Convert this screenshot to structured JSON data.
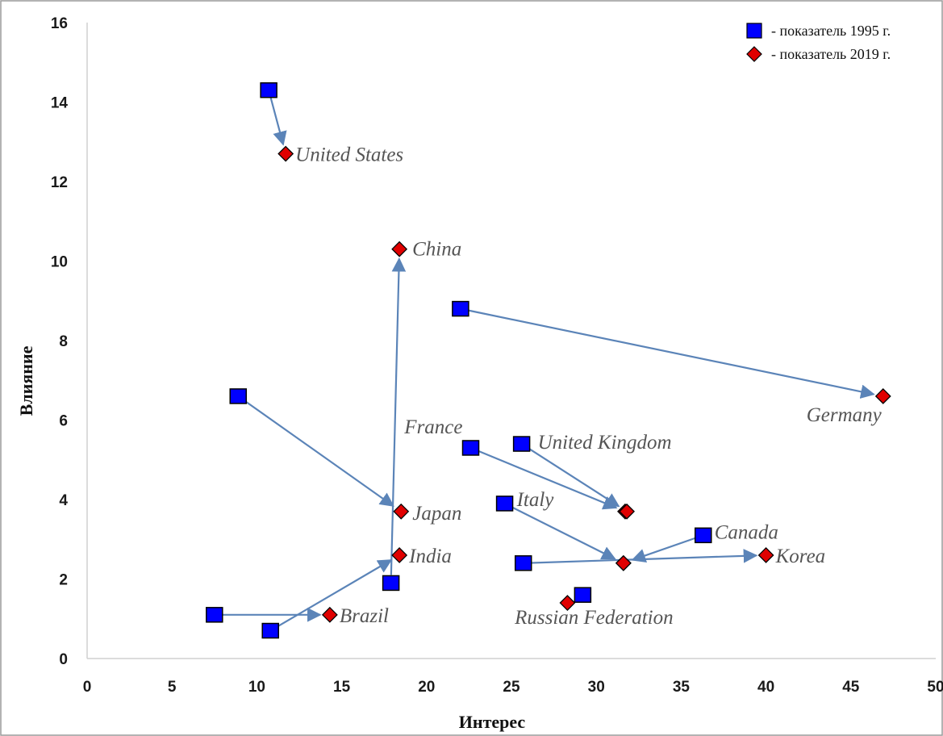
{
  "chart_data": {
    "type": "scatter",
    "xlabel": "Интерес",
    "ylabel": "Влияние",
    "xlim": [
      0,
      50
    ],
    "ylim": [
      0,
      16
    ],
    "x_ticks": [
      0,
      5,
      10,
      15,
      20,
      25,
      30,
      35,
      40,
      45,
      50
    ],
    "y_ticks": [
      0,
      2,
      4,
      6,
      8,
      10,
      12,
      14,
      16
    ],
    "grid": false,
    "legend_position": "top-right",
    "series": [
      {
        "name": "- показатель 1995 г.",
        "marker": "square",
        "color": "#0000ff"
      },
      {
        "name": "- показатель 2019 г.",
        "marker": "diamond",
        "color": "#e00000"
      }
    ],
    "arrow_color": "#5b84b8",
    "points": [
      {
        "label": "United States",
        "x1995": 10.7,
        "y1995": 14.3,
        "x2019": 11.7,
        "y2019": 12.7
      },
      {
        "label": "China",
        "x1995": 17.9,
        "y1995": 1.9,
        "x2019": 18.4,
        "y2019": 10.3
      },
      {
        "label": "Germany",
        "x1995": 22.0,
        "y1995": 8.8,
        "x2019": 46.9,
        "y2019": 6.6
      },
      {
        "label": "France",
        "x1995": 22.6,
        "y1995": 5.3,
        "x2019": 31.7,
        "y2019": 3.7
      },
      {
        "label": "United Kingdom",
        "x1995": 25.6,
        "y1995": 5.4,
        "x2019": 31.8,
        "y2019": 3.7
      },
      {
        "label": "Japan",
        "x1995": 8.9,
        "y1995": 6.6,
        "x2019": 18.5,
        "y2019": 3.7
      },
      {
        "label": "Italy",
        "x1995": 24.6,
        "y1995": 3.9,
        "x2019": 31.6,
        "y2019": 2.4
      },
      {
        "label": "Canada",
        "x1995": 36.3,
        "y1995": 3.1,
        "x2019": 31.6,
        "y2019": 2.4
      },
      {
        "label": "Korea",
        "x1995": 25.7,
        "y1995": 2.4,
        "x2019": 40.0,
        "y2019": 2.6
      },
      {
        "label": "India",
        "x1995": 10.8,
        "y1995": 0.7,
        "x2019": 18.4,
        "y2019": 2.6
      },
      {
        "label": "Brazil",
        "x1995": 7.5,
        "y1995": 1.1,
        "x2019": 14.3,
        "y2019": 1.1
      },
      {
        "label": "Russian Federation",
        "x1995": 29.2,
        "y1995": 1.6,
        "x2019": 28.3,
        "y2019": 1.4
      }
    ]
  }
}
